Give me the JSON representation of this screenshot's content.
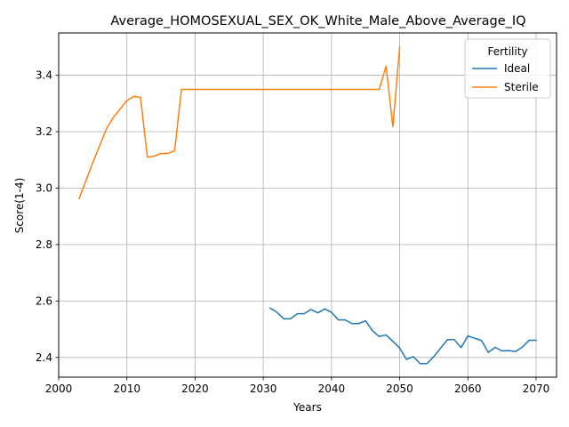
{
  "chart_data": {
    "type": "line",
    "title": "Average_HOMOSEXUAL_SEX_OK_White_Male_Above_Average_IQ",
    "xlabel": "Years",
    "ylabel": "Score(1-4)",
    "xlim": [
      2000,
      2073
    ],
    "ylim": [
      2.33,
      3.55
    ],
    "xticks": [
      2000,
      2010,
      2020,
      2030,
      2040,
      2050,
      2060,
      2070
    ],
    "yticks": [
      2.4,
      2.6,
      2.8,
      3.0,
      3.2,
      3.4
    ],
    "ytick_labels": [
      "2.4",
      "2.6",
      "2.8",
      "3.0",
      "3.2",
      "3.4"
    ],
    "grid": true,
    "legend": {
      "title": "Fertility",
      "position": "top-right"
    },
    "series": [
      {
        "name": "Ideal",
        "color": "#1f77b4",
        "x": [
          2031,
          2032,
          2033,
          2034,
          2035,
          2036,
          2037,
          2038,
          2039,
          2040,
          2041,
          2042,
          2043,
          2044,
          2045,
          2046,
          2047,
          2048,
          2049,
          2050,
          2051,
          2052,
          2053,
          2054,
          2055,
          2056,
          2057,
          2058,
          2059,
          2060,
          2061,
          2062,
          2063,
          2064,
          2065,
          2066,
          2067,
          2068,
          2069,
          2070
        ],
        "y": [
          2.575,
          2.56,
          2.537,
          2.537,
          2.555,
          2.555,
          2.57,
          2.558,
          2.572,
          2.56,
          2.533,
          2.533,
          2.52,
          2.52,
          2.53,
          2.495,
          2.474,
          2.48,
          2.457,
          2.433,
          2.393,
          2.403,
          2.378,
          2.378,
          2.403,
          2.433,
          2.463,
          2.463,
          2.435,
          2.476,
          2.468,
          2.46,
          2.418,
          2.436,
          2.423,
          2.424,
          2.421,
          2.437,
          2.461,
          2.461
        ]
      },
      {
        "name": "Sterile",
        "color": "#ff7f0e",
        "x": [
          2003,
          2005,
          2007,
          2008,
          2010,
          2011,
          2012,
          2013,
          2014,
          2015,
          2016,
          2017,
          2018,
          2020,
          2030,
          2040,
          2045,
          2047,
          2048,
          2049,
          2050
        ],
        "y": [
          2.963,
          3.09,
          3.21,
          3.25,
          3.31,
          3.325,
          3.322,
          3.11,
          3.113,
          3.123,
          3.123,
          3.132,
          3.35,
          3.35,
          3.35,
          3.35,
          3.35,
          3.35,
          3.432,
          3.218,
          3.5
        ]
      }
    ]
  }
}
